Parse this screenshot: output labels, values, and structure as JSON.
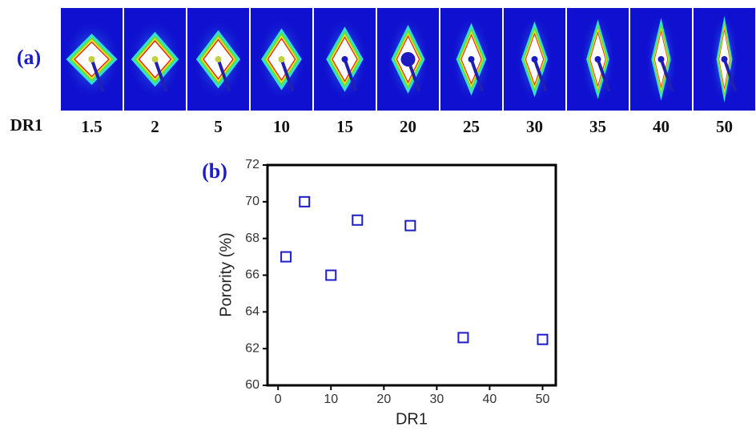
{
  "panel_a": {
    "label": "(a)",
    "row_label": "DR1",
    "labels": [
      "1.5",
      "2",
      "5",
      "10",
      "15",
      "20",
      "25",
      "30",
      "35",
      "40",
      "50"
    ]
  },
  "chart_data": {
    "type": "scatter",
    "panel_label": "(b)",
    "x_label": "DR1",
    "y_label": "Porority (%)",
    "x": [
      1.5,
      5,
      10,
      15,
      25,
      35,
      50
    ],
    "values": [
      67,
      70,
      66,
      69,
      68.7,
      62.6,
      62.5
    ],
    "color": "#1c1cc8",
    "xlim": [
      -2,
      52.5
    ],
    "ylim": [
      60,
      72
    ],
    "xticks": [
      0,
      10,
      20,
      30,
      40,
      50
    ],
    "yticks": [
      60,
      62,
      64,
      66,
      68,
      70,
      72
    ]
  }
}
